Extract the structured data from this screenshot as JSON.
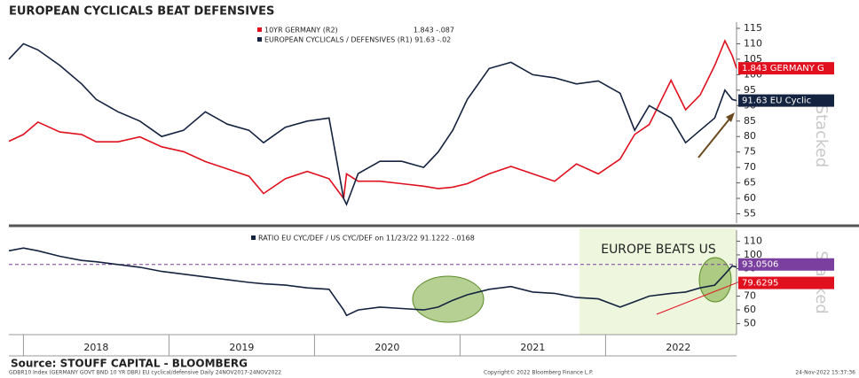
{
  "title": "EUROPEAN CYCLICALS BEAT DEFENSIVES",
  "chart_data": [
    {
      "type": "line",
      "x": [
        2017.9,
        2018.0,
        2018.1,
        2018.25,
        2018.4,
        2018.5,
        2018.65,
        2018.8,
        2018.95,
        2019.1,
        2019.25,
        2019.4,
        2019.55,
        2019.65,
        2019.8,
        2019.95,
        2020.1,
        2020.2,
        2020.22,
        2020.3,
        2020.45,
        2020.6,
        2020.75,
        2020.85,
        2020.95,
        2021.05,
        2021.2,
        2021.35,
        2021.5,
        2021.65,
        2021.8,
        2021.95,
        2022.1,
        2022.2,
        2022.3,
        2022.45,
        2022.55,
        2022.65,
        2022.75,
        2022.82,
        2022.87,
        2022.9
      ],
      "xlim": [
        2017.9,
        2022.9
      ],
      "xticks": [
        {
          "value": 2018,
          "label": "2018"
        },
        {
          "value": 2019,
          "label": "2019"
        },
        {
          "value": 2020,
          "label": "2020"
        },
        {
          "value": 2021,
          "label": "2021"
        },
        {
          "value": 2022,
          "label": "2022"
        }
      ],
      "ylim": [
        52,
        117
      ],
      "yticks": [
        55,
        60,
        65,
        70,
        75,
        80,
        85,
        90,
        95,
        100,
        105,
        110,
        115
      ],
      "y2lim": [
        -1.3,
        2.78
      ],
      "axis_side": "right",
      "series": [
        {
          "name": "10YR GERMANY (R2)",
          "last": "1.843 -.087",
          "tag": "1.843 GERMANY G",
          "color": "#e0101e",
          "axis": "y2",
          "values": [
            0.36,
            0.5,
            0.75,
            0.55,
            0.5,
            0.35,
            0.35,
            0.45,
            0.25,
            0.15,
            -0.05,
            -0.2,
            -0.35,
            -0.7,
            -0.4,
            -0.25,
            -0.4,
            -0.8,
            -0.3,
            -0.45,
            -0.45,
            -0.5,
            -0.55,
            -0.6,
            -0.57,
            -0.5,
            -0.3,
            -0.15,
            -0.3,
            -0.45,
            -0.1,
            -0.3,
            0.0,
            0.5,
            0.7,
            1.6,
            1.0,
            1.3,
            1.9,
            2.4,
            2.1,
            1.843
          ]
        },
        {
          "name": "EUROPEAN CYCLICALS / DEFENSIVES (R1) 91.63 -.02",
          "tag": "91.63 EU Cyclic",
          "color": "#14233f",
          "values": [
            105,
            110,
            108,
            103,
            97,
            92,
            88,
            85,
            80,
            82,
            88,
            84,
            82,
            78,
            83,
            85,
            86,
            60,
            58,
            68,
            72,
            72,
            70,
            75,
            82,
            92,
            102,
            104,
            100,
            99,
            97,
            98,
            94,
            82,
            90,
            86,
            78,
            82,
            86,
            95,
            92,
            91.63
          ]
        }
      ],
      "watermark": "Stacked"
    },
    {
      "type": "line",
      "x": [
        2017.9,
        2018.0,
        2018.1,
        2018.25,
        2018.4,
        2018.5,
        2018.65,
        2018.8,
        2018.95,
        2019.1,
        2019.25,
        2019.4,
        2019.55,
        2019.65,
        2019.8,
        2019.95,
        2020.1,
        2020.2,
        2020.22,
        2020.3,
        2020.45,
        2020.6,
        2020.75,
        2020.85,
        2020.95,
        2021.05,
        2021.2,
        2021.35,
        2021.5,
        2021.65,
        2021.8,
        2021.95,
        2022.1,
        2022.2,
        2022.3,
        2022.45,
        2022.55,
        2022.65,
        2022.75,
        2022.82,
        2022.87,
        2022.9
      ],
      "xlim": [
        2017.9,
        2022.9
      ],
      "ylim": [
        42,
        118
      ],
      "yticks": [
        50,
        60,
        70,
        80,
        90,
        100,
        110
      ],
      "series": [
        {
          "name": "RATIO EU CYC/DEF / US CYC/DEF on 11/23/22 91.1222 -.0168",
          "color": "#14233f",
          "values": [
            103,
            105,
            103,
            99,
            96,
            95,
            93,
            91,
            88,
            86,
            84,
            82,
            80,
            79,
            78,
            76,
            75,
            60,
            56,
            60,
            62,
            61,
            60,
            62,
            67,
            71,
            75,
            77,
            73,
            72,
            69,
            68,
            62,
            66,
            70,
            72,
            73,
            76,
            78,
            86,
            92,
            91.12
          ]
        }
      ],
      "reference_lines": [
        {
          "value": 93.0506,
          "color": "#7b3fa0"
        },
        {
          "value": 79.6295,
          "color": "#e0101e"
        }
      ],
      "annotation": "EUROPE BEATS US",
      "watermark": "Stacked"
    }
  ],
  "source": "Source: STOUFF CAPITAL - BLOOMBERG",
  "footer_left": "GDBR10 Index (GERMANY GOVT BND 10 YR DBR) EU cyclical/defensive  Daily 24NOV2017-24NOV2022",
  "footer_center": "Copyright© 2022 Bloomberg Finance L.P.",
  "footer_right": "24-Nov-2022 15:37:36"
}
